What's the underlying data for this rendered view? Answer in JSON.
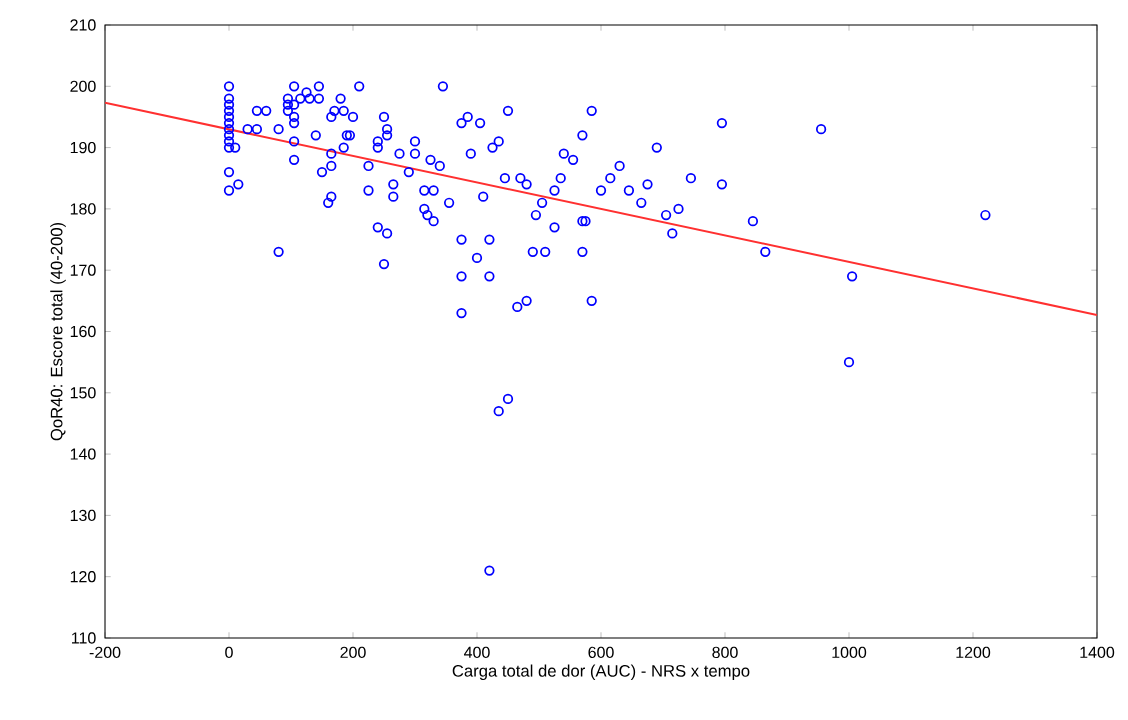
{
  "chart_data": {
    "type": "scatter",
    "xlabel": "Carga total de dor (AUC) - NRS x tempo",
    "ylabel": "QoR40: Escore total (40-200)",
    "xlim": [
      -200,
      1400
    ],
    "ylim": [
      110,
      210
    ],
    "xticks": [
      -200,
      0,
      200,
      400,
      600,
      800,
      1000,
      1200,
      1400
    ],
    "yticks": [
      110,
      120,
      130,
      140,
      150,
      160,
      170,
      180,
      190,
      200,
      210
    ],
    "grid": false,
    "legend": false,
    "series": [
      {
        "color": "#0000ff",
        "marker": "circle",
        "x": [
          0,
          0,
          0,
          0,
          0,
          0,
          0,
          0,
          0,
          0,
          0,
          0,
          10,
          15,
          30,
          45,
          45,
          60,
          80,
          80,
          95,
          95,
          95,
          105,
          105,
          105,
          105,
          105,
          105,
          115,
          125,
          130,
          140,
          145,
          145,
          150,
          160,
          165,
          165,
          165,
          165,
          170,
          180,
          185,
          185,
          190,
          195,
          200,
          210,
          225,
          225,
          240,
          240,
          240,
          250,
          250,
          255,
          255,
          255,
          265,
          265,
          275,
          290,
          300,
          300,
          315,
          315,
          320,
          325,
          330,
          330,
          340,
          345,
          355,
          375,
          375,
          375,
          375,
          385,
          390,
          400,
          405,
          410,
          420,
          420,
          420,
          425,
          435,
          435,
          445,
          450,
          450,
          465,
          470,
          480,
          480,
          490,
          495,
          505,
          510,
          525,
          525,
          535,
          540,
          555,
          570,
          570,
          575,
          570,
          585,
          585,
          600,
          615,
          630,
          645,
          665,
          675,
          690,
          705,
          715,
          725,
          745,
          795,
          795,
          845,
          865,
          955,
          1000,
          1005,
          1220
        ],
        "values": [
          200,
          198,
          197,
          196,
          195,
          194,
          193,
          192,
          191,
          190,
          186,
          183,
          190,
          184,
          193,
          196,
          193,
          196,
          173,
          193,
          198,
          197,
          196,
          200,
          197,
          195,
          194,
          191,
          188,
          198,
          199,
          198,
          192,
          200,
          198,
          186,
          181,
          182,
          187,
          189,
          195,
          196,
          198,
          196,
          190,
          192,
          192,
          195,
          200,
          187,
          183,
          177,
          191,
          190,
          171,
          195,
          193,
          192,
          176,
          184,
          182,
          189,
          186,
          191,
          189,
          180,
          183,
          179,
          188,
          183,
          178,
          187,
          200,
          181,
          194,
          175,
          169,
          163,
          195,
          189,
          172,
          194,
          182,
          175,
          169,
          121,
          190,
          191,
          147,
          185,
          196,
          149,
          164,
          185,
          184,
          165,
          173,
          179,
          181,
          173,
          183,
          177,
          185,
          189,
          188,
          192,
          178,
          178,
          173,
          196,
          165,
          183,
          185,
          187,
          183,
          181,
          184,
          190,
          179,
          176,
          180,
          185,
          194,
          184,
          178,
          173,
          193,
          155,
          169,
          179
        ]
      },
      {
        "type": "line",
        "color": "#ff3030",
        "marker": "none",
        "line_style": "solid",
        "x": [
          -200,
          1400
        ],
        "values": [
          197.3,
          162.7
        ]
      }
    ]
  }
}
